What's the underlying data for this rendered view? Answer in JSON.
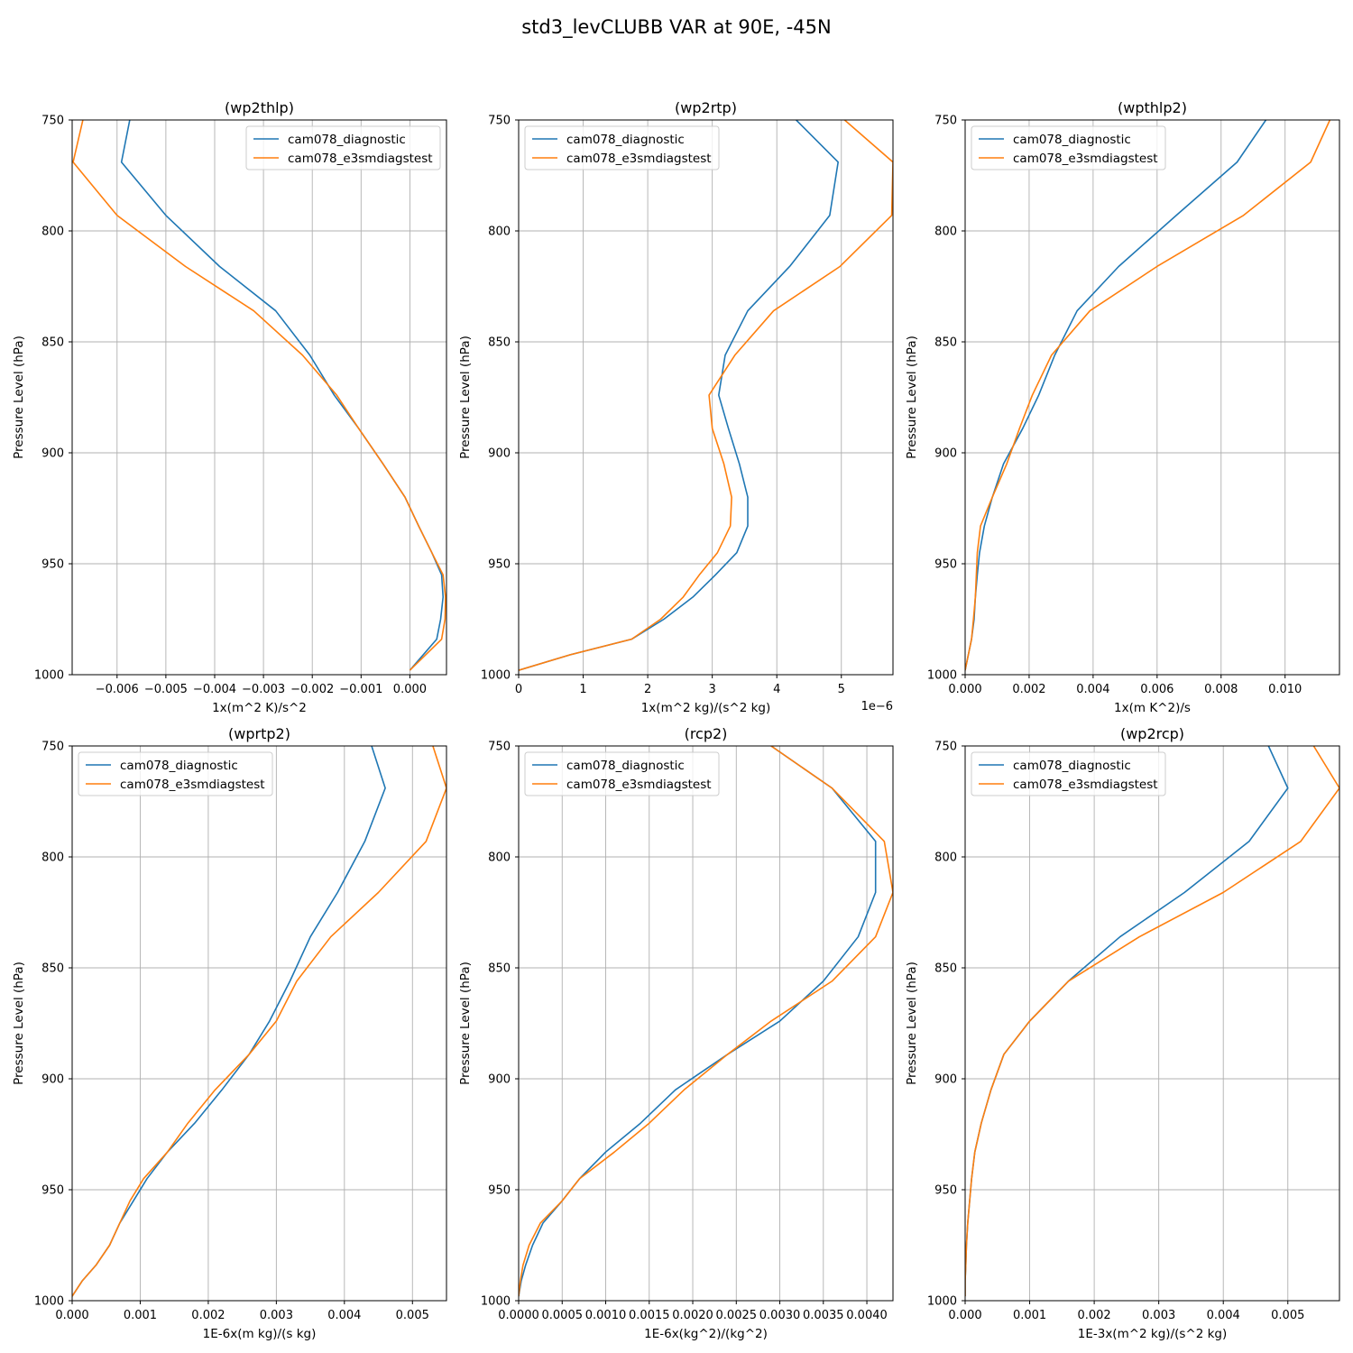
{
  "figure": {
    "suptitle": "std3_levCLUBB VAR at 90E, -45N"
  },
  "style": {
    "series_colors": [
      "#1f77b4",
      "#ff7f0e"
    ],
    "grid_color": "#b0b0b0",
    "background": "#ffffff"
  },
  "chart_data": [
    {
      "type": "line",
      "title": "(wp2thlp)",
      "xlabel": "1x(m^2 K)/s^2",
      "ylabel": "Pressure Level (hPa)",
      "x_offset_text": "",
      "xlim": [
        -0.00692,
        0.00075
      ],
      "ylim": [
        1000,
        750
      ],
      "xticks": [
        -0.006,
        -0.005,
        -0.004,
        -0.003,
        -0.002,
        -0.001,
        0.0
      ],
      "xtick_labels": [
        "−0.006",
        "−0.005",
        "−0.004",
        "−0.003",
        "−0.002",
        "−0.001",
        "0.000"
      ],
      "yticks": [
        750,
        800,
        850,
        900,
        950,
        1000
      ],
      "ytick_labels": [
        "750",
        "800",
        "850",
        "900",
        "950",
        "1000"
      ],
      "grid": true,
      "legend_position": "upper right",
      "levels": [
        750,
        769,
        793,
        816,
        836,
        856,
        874,
        889,
        905,
        920,
        933,
        945,
        955,
        965,
        975,
        984,
        998
      ],
      "series": [
        {
          "name": "cam078_diagnostic",
          "values": [
            -0.00574,
            -0.00591,
            -0.005,
            -0.0039,
            -0.00275,
            -0.00205,
            -0.00155,
            -0.00105,
            -0.00055,
            -0.0001,
            0.00018,
            0.00045,
            0.00065,
            0.00068,
            0.00063,
            0.00055,
            0.0
          ]
        },
        {
          "name": "cam078_e3smdiagstest",
          "values": [
            -0.0067,
            -0.0069,
            -0.006,
            -0.0046,
            -0.0032,
            -0.0022,
            -0.0015,
            -0.00105,
            -0.00055,
            -0.0001,
            0.00018,
            0.00045,
            0.00068,
            0.00073,
            0.00072,
            0.00065,
            0.0
          ]
        }
      ]
    },
    {
      "type": "line",
      "title": "(wp2rtp)",
      "xlabel": "1x(m^2 kg)/(s^2 kg)",
      "ylabel": "Pressure Level (hPa)",
      "x_offset_text": "1e−6",
      "xlim": [
        0,
        5.8
      ],
      "ylim": [
        1000,
        750
      ],
      "xticks": [
        0,
        1,
        2,
        3,
        4,
        5
      ],
      "xtick_labels": [
        "0",
        "1",
        "2",
        "3",
        "4",
        "5"
      ],
      "yticks": [
        750,
        800,
        850,
        900,
        950,
        1000
      ],
      "ytick_labels": [
        "750",
        "800",
        "850",
        "900",
        "950",
        "1000"
      ],
      "grid": true,
      "legend_position": "upper left",
      "levels": [
        750,
        769,
        793,
        816,
        836,
        856,
        874,
        889,
        905,
        920,
        933,
        945,
        955,
        965,
        975,
        984,
        991,
        998
      ],
      "series": [
        {
          "name": "cam078_diagnostic",
          "values": [
            4.3,
            4.95,
            4.82,
            4.2,
            3.55,
            3.2,
            3.1,
            3.25,
            3.42,
            3.55,
            3.55,
            3.38,
            3.05,
            2.7,
            2.25,
            1.75,
            0.8,
            0.0
          ]
        },
        {
          "name": "cam078_e3smdiagstest",
          "values": [
            5.05,
            5.8,
            5.78,
            4.98,
            3.95,
            3.35,
            2.95,
            3.0,
            3.18,
            3.3,
            3.28,
            3.08,
            2.8,
            2.55,
            2.2,
            1.75,
            0.8,
            0.0
          ]
        }
      ]
    },
    {
      "type": "line",
      "title": "(wpthlp2)",
      "xlabel": "1x(m K^2)/s",
      "ylabel": "Pressure Level (hPa)",
      "x_offset_text": "",
      "xlim": [
        0,
        0.0117
      ],
      "ylim": [
        1000,
        750
      ],
      "xticks": [
        0.0,
        0.002,
        0.004,
        0.006,
        0.008,
        0.01
      ],
      "xtick_labels": [
        "0.000",
        "0.002",
        "0.004",
        "0.006",
        "0.008",
        "0.010"
      ],
      "yticks": [
        750,
        800,
        850,
        900,
        950,
        1000
      ],
      "ytick_labels": [
        "750",
        "800",
        "850",
        "900",
        "950",
        "1000"
      ],
      "grid": true,
      "legend_position": "upper left",
      "levels": [
        750,
        769,
        793,
        816,
        836,
        856,
        874,
        889,
        905,
        920,
        933,
        945,
        955,
        965,
        975,
        984,
        998
      ],
      "series": [
        {
          "name": "cam078_diagnostic",
          "values": [
            0.0094,
            0.0085,
            0.0066,
            0.0048,
            0.0035,
            0.0028,
            0.0023,
            0.0018,
            0.0012,
            0.00085,
            0.0006,
            0.00045,
            0.00038,
            0.00032,
            0.00028,
            0.0002,
            0.0
          ]
        },
        {
          "name": "cam078_e3smdiagstest",
          "values": [
            0.0114,
            0.0108,
            0.0087,
            0.006,
            0.0039,
            0.0027,
            0.0021,
            0.0017,
            0.0013,
            0.00085,
            0.00048,
            0.00038,
            0.00035,
            0.00032,
            0.00026,
            0.0002,
            0.0
          ]
        }
      ]
    },
    {
      "type": "line",
      "title": "(wprtp2)",
      "xlabel": "1E-6x(m kg)/(s kg)",
      "ylabel": "Pressure Level (hPa)",
      "x_offset_text": "",
      "xlim": [
        0,
        0.0055
      ],
      "ylim": [
        1000,
        750
      ],
      "xticks": [
        0.0,
        0.001,
        0.002,
        0.003,
        0.004,
        0.005
      ],
      "xtick_labels": [
        "0.000",
        "0.001",
        "0.002",
        "0.003",
        "0.004",
        "0.005"
      ],
      "yticks": [
        750,
        800,
        850,
        900,
        950,
        1000
      ],
      "ytick_labels": [
        "750",
        "800",
        "850",
        "900",
        "950",
        "1000"
      ],
      "grid": true,
      "legend_position": "upper left",
      "levels": [
        750,
        769,
        793,
        816,
        836,
        856,
        874,
        889,
        905,
        920,
        933,
        945,
        955,
        965,
        975,
        984,
        991,
        998
      ],
      "series": [
        {
          "name": "cam078_diagnostic",
          "values": [
            0.0044,
            0.0046,
            0.0043,
            0.0039,
            0.0035,
            0.0032,
            0.0029,
            0.0026,
            0.0022,
            0.0018,
            0.0014,
            0.0011,
            0.0009,
            0.0007,
            0.00055,
            0.00035,
            0.00015,
            0.0
          ]
        },
        {
          "name": "cam078_e3smdiagstest",
          "values": [
            0.0053,
            0.0055,
            0.0052,
            0.0045,
            0.0038,
            0.0033,
            0.003,
            0.0026,
            0.0021,
            0.0017,
            0.0014,
            0.00105,
            0.00085,
            0.0007,
            0.00055,
            0.00035,
            0.00015,
            0.0
          ]
        }
      ]
    },
    {
      "type": "line",
      "title": "(rcp2)",
      "xlabel": "1E-6x(kg^2)/(kg^2)",
      "ylabel": "Pressure Level (hPa)",
      "x_offset_text": "",
      "xlim": [
        0,
        0.0043
      ],
      "ylim": [
        1000,
        750
      ],
      "xticks": [
        0.0,
        0.0005,
        0.001,
        0.0015,
        0.002,
        0.0025,
        0.003,
        0.0035,
        0.004
      ],
      "xtick_labels": [
        "0.0000",
        "0.0005",
        "0.0010",
        "0.0015",
        "0.0020",
        "0.0025",
        "0.0030",
        "0.0035",
        "0.0040"
      ],
      "yticks": [
        750,
        800,
        850,
        900,
        950,
        1000
      ],
      "ytick_labels": [
        "750",
        "800",
        "850",
        "900",
        "950",
        "1000"
      ],
      "grid": true,
      "legend_position": "upper left",
      "levels": [
        750,
        769,
        793,
        816,
        836,
        856,
        874,
        889,
        905,
        920,
        933,
        945,
        955,
        965,
        975,
        984,
        991,
        998
      ],
      "series": [
        {
          "name": "cam078_diagnostic",
          "values": [
            0.0029,
            0.0036,
            0.0041,
            0.0041,
            0.0039,
            0.0035,
            0.003,
            0.0024,
            0.0018,
            0.0014,
            0.001,
            0.0007,
            0.0005,
            0.00028,
            0.00016,
            8e-05,
            3e-05,
            0.0
          ]
        },
        {
          "name": "cam078_e3smdiagstest",
          "values": [
            0.0029,
            0.0036,
            0.0042,
            0.0043,
            0.0041,
            0.0036,
            0.0029,
            0.0024,
            0.0019,
            0.0015,
            0.0011,
            0.0007,
            0.0005,
            0.00025,
            0.00012,
            5e-05,
            2e-05,
            0.0
          ]
        }
      ]
    },
    {
      "type": "line",
      "title": "(wp2rcp)",
      "xlabel": "1E-3x(m^2 kg)/(s^2 kg)",
      "ylabel": "Pressure Level (hPa)",
      "x_offset_text": "",
      "xlim": [
        0,
        0.0058
      ],
      "ylim": [
        1000,
        750
      ],
      "xticks": [
        0.0,
        0.001,
        0.002,
        0.003,
        0.004,
        0.005
      ],
      "xtick_labels": [
        "0.000",
        "0.001",
        "0.002",
        "0.003",
        "0.004",
        "0.005"
      ],
      "yticks": [
        750,
        800,
        850,
        900,
        950,
        1000
      ],
      "ytick_labels": [
        "750",
        "800",
        "850",
        "900",
        "950",
        "1000"
      ],
      "grid": true,
      "legend_position": "upper left",
      "levels": [
        750,
        769,
        793,
        816,
        836,
        856,
        874,
        889,
        905,
        920,
        933,
        945,
        955,
        965,
        975,
        984,
        991,
        998
      ],
      "series": [
        {
          "name": "cam078_diagnostic",
          "values": [
            0.0047,
            0.005,
            0.0044,
            0.0034,
            0.0024,
            0.0016,
            0.001,
            0.0006,
            0.0004,
            0.00025,
            0.00015,
            0.0001,
            7e-05,
            4e-05,
            2e-05,
            1e-05,
            0.0,
            0.0
          ]
        },
        {
          "name": "cam078_e3smdiagstest",
          "values": [
            0.0054,
            0.0058,
            0.0052,
            0.004,
            0.0027,
            0.0016,
            0.001,
            0.0006,
            0.0004,
            0.00025,
            0.00015,
            0.0001,
            7e-05,
            4e-05,
            2e-05,
            1e-05,
            0.0,
            0.0
          ]
        }
      ]
    }
  ]
}
